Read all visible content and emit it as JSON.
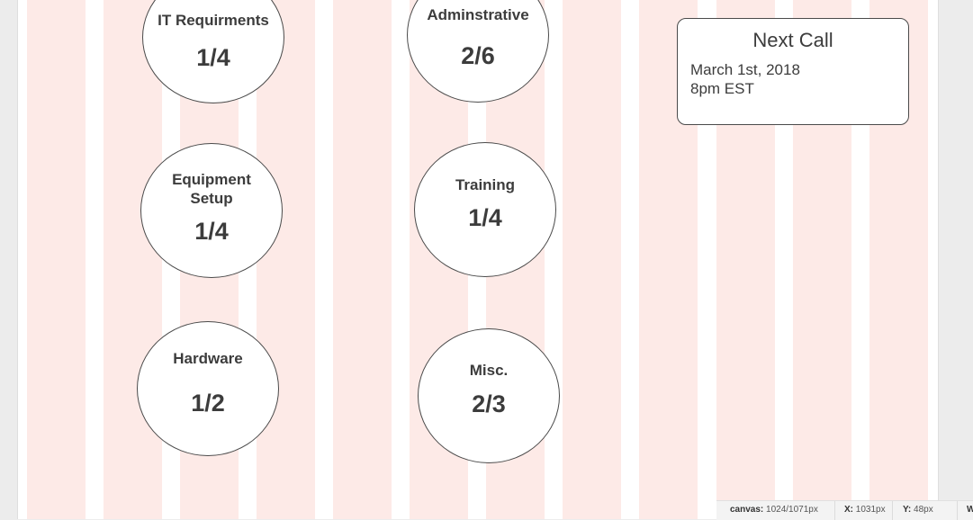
{
  "categories": [
    {
      "id": "it-requirements",
      "label": "IT Requirments",
      "count": "1/4"
    },
    {
      "id": "administrative",
      "label": "Adminstrative",
      "count": "2/6"
    },
    {
      "id": "equipment-setup",
      "label": "Equipment Setup",
      "count": "1/4"
    },
    {
      "id": "training",
      "label": "Training",
      "count": "1/4"
    },
    {
      "id": "hardware",
      "label": "Hardware",
      "count": "1/2"
    },
    {
      "id": "misc",
      "label": "Misc.",
      "count": "2/3"
    }
  ],
  "next_call": {
    "title": "Next Call",
    "date": "March 1st, 2018",
    "time": "8pm EST"
  },
  "status": {
    "canvas_label": "canvas:",
    "canvas_value": "1024/1071px",
    "x_label": "X:",
    "x_value": "1031px",
    "y_label": "Y:",
    "y_value": "48px",
    "w_label": "W"
  },
  "colors": {
    "grid_column": "#fdeae7",
    "outline": "#4a4a4a",
    "text": "#3c3c3c"
  }
}
